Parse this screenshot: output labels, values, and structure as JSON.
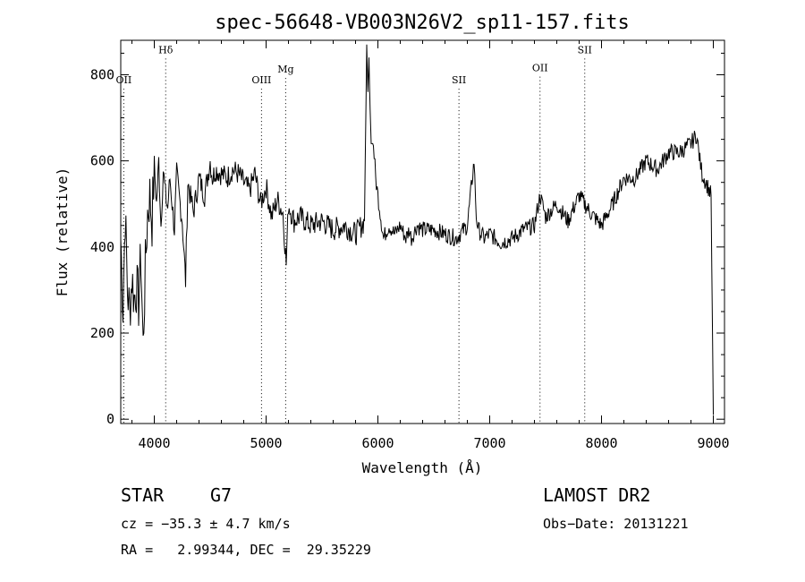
{
  "chart_data": {
    "type": "line",
    "title": "spec-56648-VB003N26V2_sp11-157.fits",
    "xlabel": "Wavelength (Å)",
    "ylabel": "Flux (relative)",
    "xlim": [
      3700,
      9100
    ],
    "ylim": [
      -10,
      880
    ],
    "x_ticks": [
      4000,
      5000,
      6000,
      7000,
      8000,
      9000
    ],
    "y_ticks": [
      0,
      200,
      400,
      600,
      800
    ],
    "grid": false,
    "line_color": "#000000",
    "marker_color": "#000000",
    "line_markers": [
      {
        "label": "OII",
        "x": 3727,
        "label_flux": 780
      },
      {
        "label": "Hδ",
        "x": 4102,
        "label_flux": 850
      },
      {
        "label": "OIII",
        "x": 4959,
        "label_flux": 780
      },
      {
        "label": "Mg",
        "x": 5175,
        "label_flux": 805
      },
      {
        "label": "SII",
        "x": 6725,
        "label_flux": 780
      },
      {
        "label": "OII",
        "x": 7450,
        "label_flux": 808
      },
      {
        "label": "SII",
        "x": 7850,
        "label_flux": 850
      }
    ],
    "series": [
      {
        "x": [
          3700,
          3720,
          3740,
          3760,
          3780,
          3800,
          3820,
          3840,
          3860,
          3880,
          3900,
          3920,
          3940,
          3960,
          3980,
          4000,
          4020,
          4040,
          4060,
          4080,
          4100,
          4120,
          4140,
          4160,
          4180,
          4200,
          4250,
          4280,
          4300,
          4350,
          4400,
          4450,
          4500,
          4520,
          4550,
          4600,
          4650,
          4700,
          4750,
          4800,
          4850,
          4900,
          4950,
          5000,
          5050,
          5100,
          5150,
          5180,
          5200,
          5250,
          5300,
          5400,
          5500,
          5600,
          5700,
          5800,
          5880,
          5900,
          5910,
          5920,
          5930,
          5940,
          5960,
          5980,
          6000,
          6020,
          6050,
          6080,
          6100,
          6150,
          6200,
          6250,
          6280,
          6300,
          6350,
          6400,
          6500,
          6600,
          6700,
          6800,
          6860,
          6880,
          6900,
          6950,
          7000,
          7100,
          7200,
          7300,
          7400,
          7450,
          7500,
          7600,
          7700,
          7800,
          7900,
          8000,
          8100,
          8200,
          8300,
          8400,
          8500,
          8600,
          8700,
          8800,
          8850,
          8880,
          8900,
          8950,
          8980,
          9000
        ],
        "y": [
          420,
          260,
          480,
          300,
          250,
          330,
          280,
          310,
          270,
          380,
          170,
          350,
          480,
          520,
          460,
          590,
          500,
          600,
          450,
          580,
          520,
          490,
          560,
          500,
          440,
          570,
          460,
          320,
          550,
          480,
          560,
          520,
          600,
          560,
          580,
          570,
          560,
          580,
          570,
          550,
          530,
          570,
          500,
          540,
          470,
          510,
          480,
          360,
          500,
          460,
          470,
          450,
          460,
          440,
          450,
          430,
          460,
          870,
          760,
          840,
          720,
          640,
          640,
          560,
          520,
          480,
          420,
          440,
          450,
          430,
          450,
          420,
          440,
          420,
          450,
          440,
          440,
          430,
          420,
          450,
          600,
          470,
          440,
          420,
          430,
          410,
          420,
          440,
          450,
          520,
          470,
          500,
          460,
          520,
          480,
          450,
          500,
          560,
          560,
          600,
          580,
          620,
          620,
          640,
          660,
          600,
          570,
          540,
          520,
          10
        ]
      }
    ]
  },
  "footer": {
    "object_class": "STAR",
    "subclass": "G7",
    "survey": "LAMOST DR2",
    "redshift": "cz = −35.3 ± 4.7 km/s",
    "obs_date": "Obs−Date: 20131221",
    "coords": "RA =   2.99344, DEC =  29.35229"
  }
}
